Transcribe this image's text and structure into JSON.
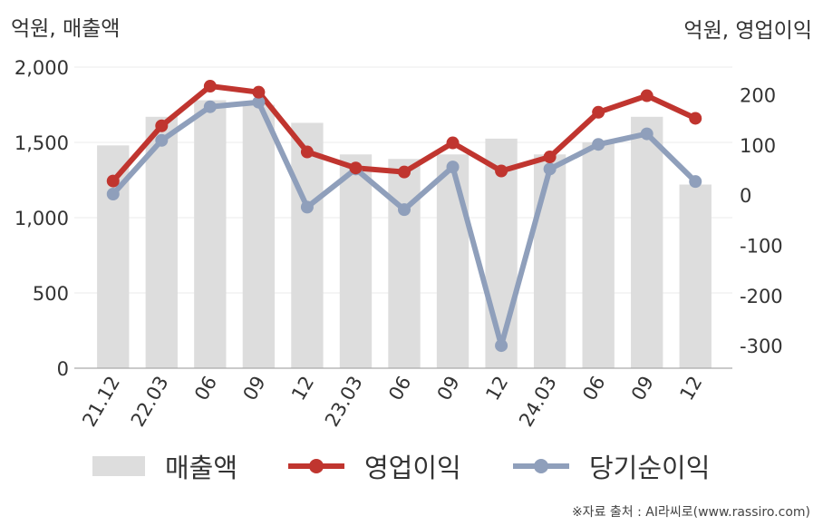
{
  "chart_data": {
    "type": "bar+line",
    "categories": [
      "21.12",
      "22.03",
      "06",
      "09",
      "12",
      "23.03",
      "06",
      "09",
      "12",
      "24.03",
      "06",
      "09",
      "12"
    ],
    "left_axis": {
      "unit_label": "억원, 매출액",
      "ylim": [
        0,
        2000
      ],
      "ticks": [
        0,
        500,
        1000,
        1500,
        2000
      ],
      "tick_labels": [
        "0",
        "500",
        "1,000",
        "1,500",
        "2,000"
      ]
    },
    "right_axis": {
      "unit_label": "억원, 영업이익",
      "ylim": [
        -345,
        255
      ],
      "ticks": [
        -300,
        -200,
        -100,
        0,
        100,
        200
      ],
      "tick_labels": [
        "-300",
        "-200",
        "-100",
        "0",
        "100",
        "200"
      ]
    },
    "series": [
      {
        "name": "매출액",
        "kind": "bar",
        "axis": "left",
        "color": "#dddddd",
        "values": [
          1480,
          1670,
          1780,
          1750,
          1630,
          1420,
          1390,
          1420,
          1525,
          1420,
          1500,
          1670,
          1220
        ]
      },
      {
        "name": "영업이익",
        "kind": "line",
        "axis": "right",
        "color": "#c0352f",
        "values": [
          28,
          138,
          217,
          205,
          86,
          54,
          46,
          104,
          48,
          76,
          165,
          198,
          153
        ]
      },
      {
        "name": "당기순이익",
        "kind": "line",
        "axis": "right",
        "color": "#8f9fbb",
        "values": [
          2,
          109,
          176,
          185,
          -24,
          52,
          -29,
          56,
          -300,
          52,
          101,
          122,
          27
        ]
      }
    ],
    "grid": true,
    "legend_position": "bottom",
    "source": "※자료 출처 : AI라씨로(www.rassiro.com)"
  }
}
